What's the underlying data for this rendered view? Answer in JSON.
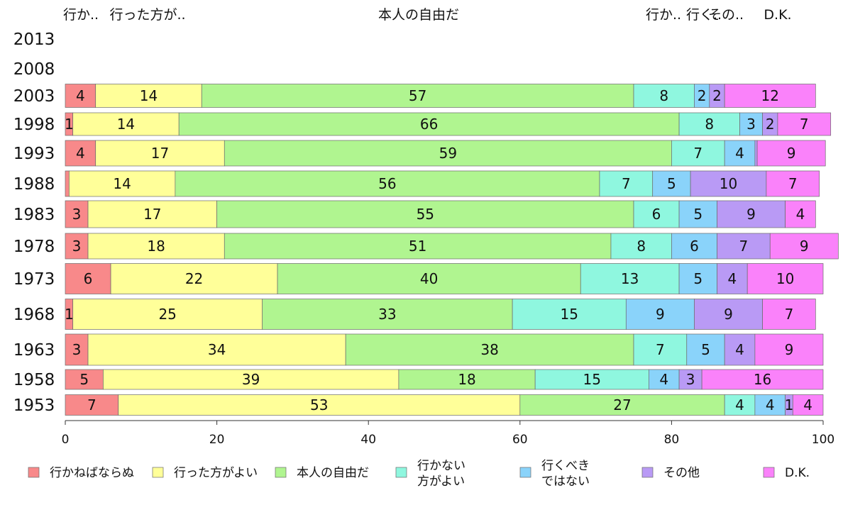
{
  "chart_data": {
    "type": "bar",
    "orientation": "horizontal",
    "stacked": true,
    "top_labels": [
      "行か..",
      "行った方が..",
      "本人の自由だ",
      "行か..",
      "行く..",
      "その..",
      "D.K."
    ],
    "categories": [
      "2013",
      "2008",
      "2003",
      "1998",
      "1993",
      "1988",
      "1983",
      "1978",
      "1973",
      "1968",
      "1963",
      "1958",
      "1953"
    ],
    "series": [
      {
        "name": "行かねばならぬ",
        "color": "#F8898A",
        "values": [
          null,
          null,
          4,
          1,
          4,
          0.5,
          3,
          3,
          6,
          1,
          3,
          5,
          7
        ]
      },
      {
        "name": "行った方がよい",
        "color": "#FFFF99",
        "values": [
          null,
          null,
          14,
          14,
          17,
          14,
          17,
          18,
          22,
          25,
          34,
          39,
          53
        ]
      },
      {
        "name": "本人の自由だ",
        "color": "#B0F590",
        "values": [
          null,
          null,
          57,
          66,
          59,
          56,
          55,
          51,
          40,
          33,
          38,
          18,
          27
        ]
      },
      {
        "name": "行かない方がよい",
        "color": "#8FF7DF",
        "values": [
          null,
          null,
          8,
          8,
          7,
          7,
          6,
          8,
          13,
          15,
          7,
          15,
          4
        ]
      },
      {
        "name": "行くべきではない",
        "color": "#8AD3FA",
        "values": [
          null,
          null,
          2,
          3,
          4,
          5,
          5,
          6,
          5,
          9,
          5,
          4,
          4
        ]
      },
      {
        "name": "その他",
        "color": "#B99AF5",
        "values": [
          null,
          null,
          2,
          2,
          0.3,
          10,
          9,
          7,
          4,
          9,
          4,
          3,
          1
        ]
      },
      {
        "name": "D.K.",
        "color": "#FA82FA",
        "values": [
          null,
          null,
          12,
          7,
          9,
          7,
          4,
          9,
          10,
          7,
          9,
          16,
          4
        ]
      }
    ],
    "xlim": [
      0,
      100
    ],
    "xticks": [
      "0",
      "20",
      "40",
      "60",
      "80",
      "100"
    ],
    "legend_labels": [
      [
        "行かねばならぬ"
      ],
      [
        "行った方がよい"
      ],
      [
        "本人の自由だ"
      ],
      [
        "行かない",
        "方がよい"
      ],
      [
        "行くべき",
        "ではない"
      ],
      [
        "その他"
      ],
      [
        "D.K."
      ]
    ],
    "legend_position": "bottom",
    "grid": false
  }
}
